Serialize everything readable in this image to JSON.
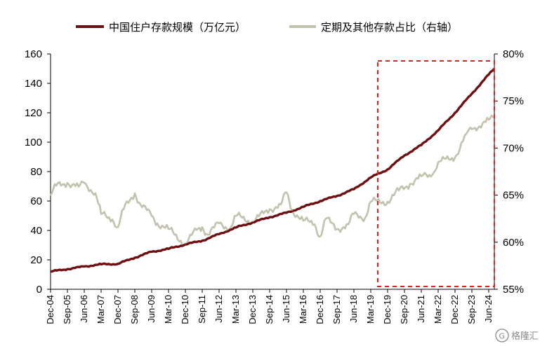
{
  "chart_data": {
    "type": "line",
    "title": "",
    "legend_position": "top",
    "legend": [
      {
        "name": "中国住户存款规模（万亿元）",
        "color": "#6e0f12",
        "axis": "left"
      },
      {
        "name": "定期及其他存款占比（右轴）",
        "color": "#c2c2ad",
        "axis": "right"
      }
    ],
    "x_tick_labels": [
      "Dec-04",
      "Sep-05",
      "Jun-06",
      "Mar-07",
      "Dec-07",
      "Sep-08",
      "Jun-09",
      "Mar-10",
      "Dec-10",
      "Sep-11",
      "Jun-12",
      "Mar-13",
      "Dec-13",
      "Sep-14",
      "Jun-15",
      "Mar-16",
      "Dec-16",
      "Sep-17",
      "Jun-18",
      "Mar-19",
      "Dec-19",
      "Sep-20",
      "Jun-21",
      "Mar-22",
      "Dec-22",
      "Sep-23",
      "Jun-24"
    ],
    "y_left": {
      "min": 0,
      "max": 160,
      "ticks": [
        0,
        20,
        40,
        60,
        80,
        100,
        120,
        140,
        160
      ],
      "tick_labels": [
        "0",
        "20",
        "40",
        "60",
        "80",
        "100",
        "120",
        "140",
        "160"
      ]
    },
    "y_right": {
      "min": 55,
      "max": 80,
      "ticks": [
        55,
        60,
        65,
        70,
        75,
        80
      ],
      "tick_labels": [
        "55%",
        "60%",
        "65%",
        "70%",
        "75%",
        "80%"
      ]
    },
    "grid": false,
    "highlight_box": {
      "x_start": "Sep-19",
      "x_end": "Sep-24",
      "style": "red dashed"
    },
    "series": [
      {
        "name": "中国住户存款规模（万亿元）",
        "axis": "left",
        "points": [
          [
            "Dec-04",
            12.0
          ],
          [
            "Sep-05",
            13.7
          ],
          [
            "Jun-06",
            15.5
          ],
          [
            "Mar-07",
            17.0
          ],
          [
            "Dec-07",
            17.3
          ],
          [
            "Sep-08",
            21.5
          ],
          [
            "Jun-09",
            25.5
          ],
          [
            "Mar-10",
            27.5
          ],
          [
            "Dec-10",
            30.5
          ],
          [
            "Sep-11",
            33.0
          ],
          [
            "Jun-12",
            37.5
          ],
          [
            "Mar-13",
            42.0
          ],
          [
            "Dec-13",
            45.5
          ],
          [
            "Sep-14",
            49.0
          ],
          [
            "Jun-15",
            52.0
          ],
          [
            "Mar-16",
            56.0
          ],
          [
            "Dec-16",
            60.0
          ],
          [
            "Sep-17",
            63.5
          ],
          [
            "Jun-18",
            68.0
          ],
          [
            "Mar-19",
            76.0
          ],
          [
            "Dec-19",
            81.5
          ],
          [
            "Sep-20",
            91.0
          ],
          [
            "Jun-21",
            98.0
          ],
          [
            "Mar-22",
            108.0
          ],
          [
            "Dec-22",
            120.0
          ],
          [
            "Sep-23",
            133.0
          ],
          [
            "Jun-24",
            146.0
          ],
          [
            "Sep-24",
            150.0
          ]
        ]
      },
      {
        "name": "定期及其他存款占比（右轴）",
        "axis": "right",
        "points": [
          [
            "Dec-04",
            65.0
          ],
          [
            "Mar-05",
            66.0
          ],
          [
            "Sep-05",
            66.3
          ],
          [
            "Mar-06",
            65.9
          ],
          [
            "Jun-06",
            66.3
          ],
          [
            "Dec-06",
            65.2
          ],
          [
            "Mar-07",
            63.0
          ],
          [
            "Sep-07",
            62.4
          ],
          [
            "Dec-07",
            61.6
          ],
          [
            "Mar-08",
            63.5
          ],
          [
            "Sep-08",
            65.2
          ],
          [
            "Dec-08",
            64.0
          ],
          [
            "Jun-09",
            62.8
          ],
          [
            "Sep-09",
            62.0
          ],
          [
            "Mar-10",
            61.4
          ],
          [
            "Dec-10",
            59.8
          ],
          [
            "Jun-11",
            61.3
          ],
          [
            "Sep-11",
            61.6
          ],
          [
            "Dec-11",
            60.8
          ],
          [
            "Jun-12",
            62.0
          ],
          [
            "Dec-12",
            61.5
          ],
          [
            "Mar-13",
            62.8
          ],
          [
            "Dec-13",
            62.2
          ],
          [
            "Sep-14",
            63.5
          ],
          [
            "Mar-15",
            64.0
          ],
          [
            "Jun-15",
            65.3
          ],
          [
            "Sep-15",
            63.4
          ],
          [
            "Mar-16",
            62.3
          ],
          [
            "Sep-16",
            61.9
          ],
          [
            "Dec-16",
            60.6
          ],
          [
            "Mar-17",
            62.5
          ],
          [
            "Sep-17",
            61.4
          ],
          [
            "Mar-18",
            61.9
          ],
          [
            "Jun-18",
            63.0
          ],
          [
            "Dec-18",
            62.6
          ],
          [
            "Mar-19",
            64.3
          ],
          [
            "Dec-19",
            64.3
          ],
          [
            "Jun-20",
            65.5
          ],
          [
            "Dec-20",
            66.2
          ],
          [
            "Jun-21",
            67.0
          ],
          [
            "Dec-21",
            67.2
          ],
          [
            "Mar-22",
            68.5
          ],
          [
            "Dec-22",
            69.0
          ],
          [
            "Jun-23",
            71.5
          ],
          [
            "Sep-23",
            72.0
          ],
          [
            "Jun-24",
            73.0
          ],
          [
            "Sep-24",
            73.2
          ]
        ]
      }
    ]
  },
  "watermark": {
    "text": "格隆汇",
    "logo_letter": "G"
  }
}
